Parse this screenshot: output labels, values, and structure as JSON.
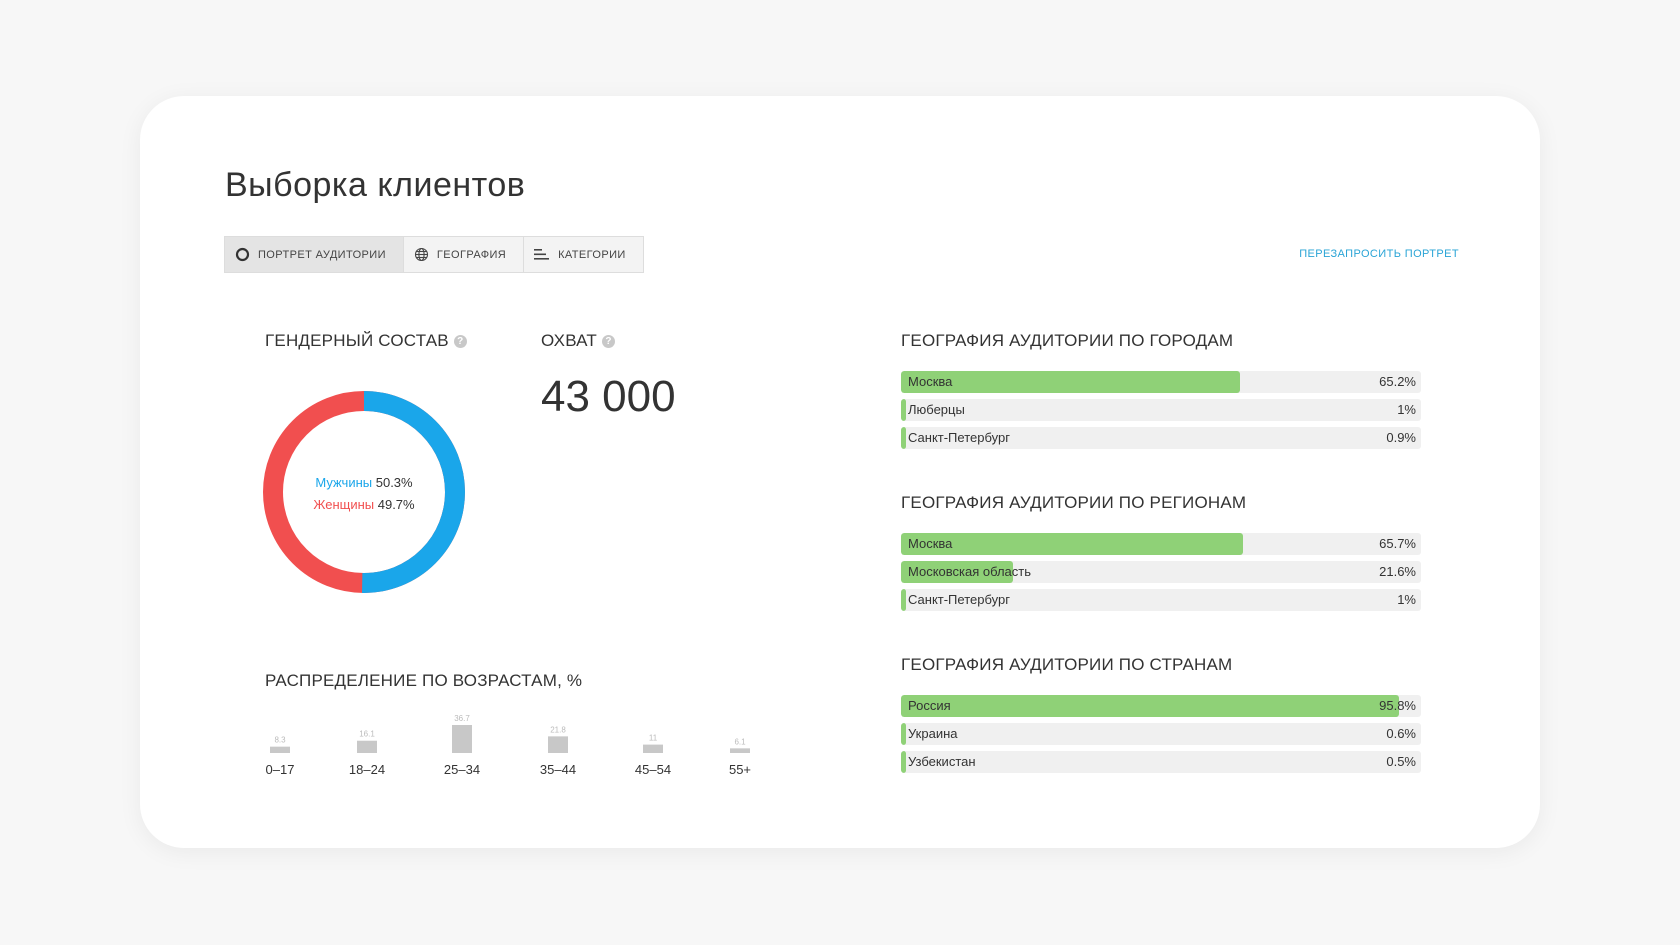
{
  "page": {
    "title": "Выборка клиентов",
    "requery_label": "ПЕРЕЗАПРОСИТЬ ПОРТРЕТ"
  },
  "tabs": [
    {
      "label": "ПОРТРЕТ АУДИТОРИИ",
      "icon": "ring-icon",
      "active": true
    },
    {
      "label": "ГЕОГРАФИЯ",
      "icon": "globe-icon",
      "active": false
    },
    {
      "label": "КАТЕГОРИИ",
      "icon": "bars-icon",
      "active": false
    }
  ],
  "gender": {
    "heading": "ГЕНДЕРНЫЙ СОСТАВ",
    "help_icon": "question-icon",
    "male_label": "Мужчины",
    "male_value": "50.3%",
    "female_label": "Женщины",
    "female_value": "49.7%",
    "colors": {
      "male": "#1aa6ea",
      "female": "#f14f4f"
    }
  },
  "reach": {
    "heading": "ОХВАТ",
    "help_icon": "question-icon",
    "value": "43 000"
  },
  "age": {
    "heading": "РАСПРЕДЕЛЕНИЕ ПО ВОЗРАСТАМ, %"
  },
  "geo": {
    "cities": {
      "heading": "ГЕОГРАФИЯ АУДИТОРИИ ПО ГОРОДАМ",
      "rows": [
        {
          "name": "Москва",
          "pct": "65.2%",
          "value": 65.2
        },
        {
          "name": "Люберцы",
          "pct": "1%",
          "value": 1
        },
        {
          "name": "Санкт-Петербург",
          "pct": "0.9%",
          "value": 0.9
        }
      ]
    },
    "regions": {
      "heading": "ГЕОГРАФИЯ АУДИТОРИИ ПО РЕГИОНАМ",
      "rows": [
        {
          "name": "Москва",
          "pct": "65.7%",
          "value": 65.7
        },
        {
          "name": "Московская область",
          "pct": "21.6%",
          "value": 21.6
        },
        {
          "name": "Санкт-Петербург",
          "pct": "1%",
          "value": 1
        }
      ]
    },
    "countries": {
      "heading": "ГЕОГРАФИЯ АУДИТОРИИ ПО СТРАНАМ",
      "rows": [
        {
          "name": "Россия",
          "pct": "95.8%",
          "value": 95.8
        },
        {
          "name": "Украина",
          "pct": "0.6%",
          "value": 0.6
        },
        {
          "name": "Узбекистан",
          "pct": "0.5%",
          "value": 0.5
        }
      ]
    }
  },
  "chart_data": {
    "type": "bar",
    "title": "РАСПРЕДЕЛЕНИЕ ПО ВОЗРАСТАМ, %",
    "categories": [
      "0–17",
      "18–24",
      "25–34",
      "35–44",
      "45–54",
      "55+"
    ],
    "values": [
      8.3,
      16.1,
      36.7,
      21.8,
      11,
      6.1
    ],
    "value_labels": [
      "8.3",
      "16.1",
      "36.7",
      "21.8",
      "11",
      "6.1"
    ],
    "ylim": [
      0,
      36.7
    ],
    "grid": false,
    "bar_color": "#c8c8c8"
  }
}
